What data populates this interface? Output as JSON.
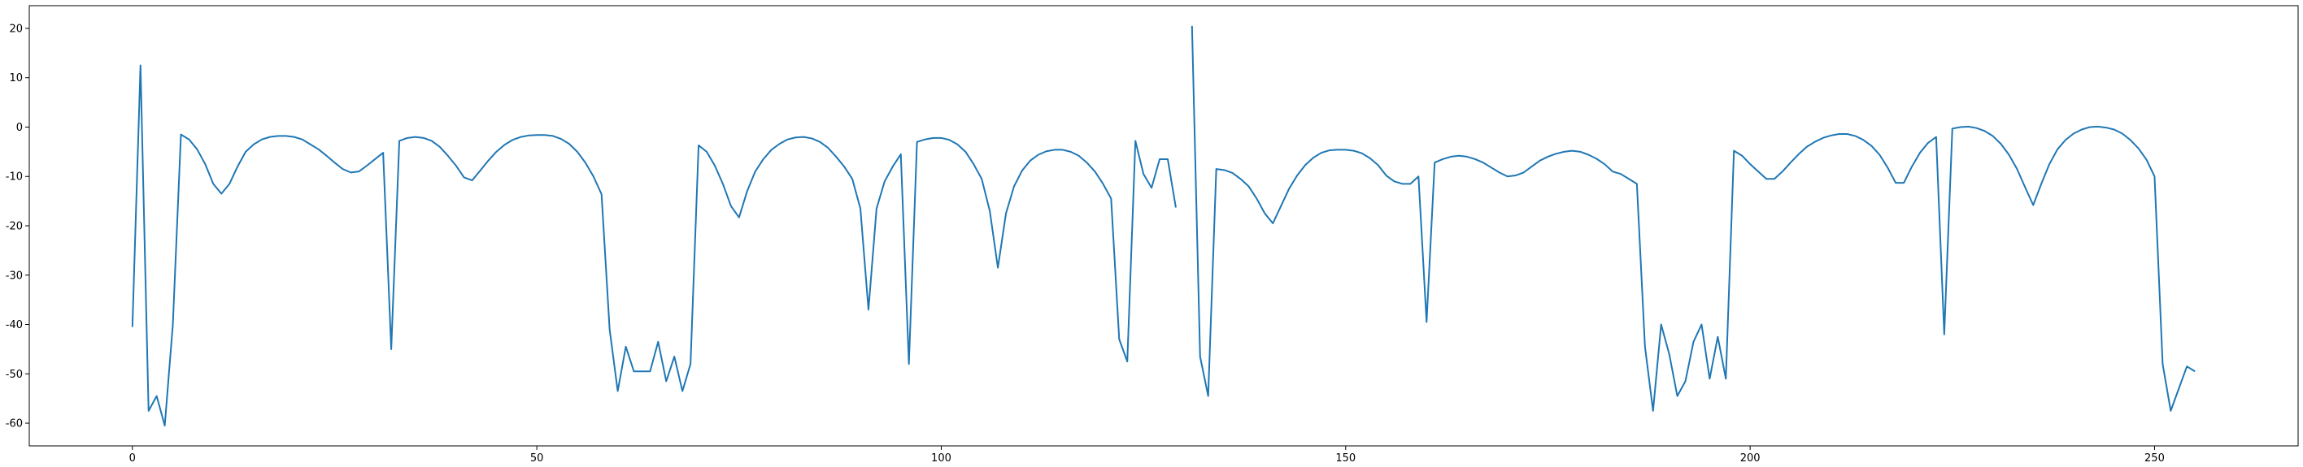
{
  "chart_data": {
    "type": "line",
    "x": [
      0,
      1,
      2,
      3,
      4,
      5,
      6,
      7,
      8,
      9,
      10,
      11,
      12,
      13,
      14,
      15,
      16,
      17,
      18,
      19,
      20,
      21,
      22,
      23,
      24,
      25,
      26,
      27,
      28,
      29,
      30,
      31,
      32,
      33,
      34,
      35,
      36,
      37,
      38,
      39,
      40,
      41,
      42,
      43,
      44,
      45,
      46,
      47,
      48,
      49,
      50,
      51,
      52,
      53,
      54,
      55,
      56,
      57,
      58,
      59,
      60,
      61,
      62,
      63,
      64,
      65,
      66,
      67,
      68,
      69,
      70,
      71,
      72,
      73,
      74,
      75,
      76,
      77,
      78,
      79,
      80,
      81,
      82,
      83,
      84,
      85,
      86,
      87,
      88,
      89,
      90,
      91,
      92,
      93,
      94,
      95,
      96,
      97,
      98,
      99,
      100,
      101,
      102,
      103,
      104,
      105,
      106,
      107,
      108,
      109,
      110,
      111,
      112,
      113,
      114,
      115,
      116,
      117,
      118,
      119,
      120,
      121,
      122,
      123,
      124,
      125,
      126,
      127,
      128,
      129,
      130,
      131,
      132,
      133,
      134,
      135,
      136,
      137,
      138,
      139,
      140,
      141,
      142,
      143,
      144,
      145,
      146,
      147,
      148,
      149,
      150,
      151,
      152,
      153,
      154,
      155,
      156,
      157,
      158,
      159,
      160,
      161,
      162,
      163,
      164,
      165,
      166,
      167,
      168,
      169,
      170,
      171,
      172,
      173,
      174,
      175,
      176,
      177,
      178,
      179,
      180,
      181,
      182,
      183,
      184,
      185,
      186,
      187,
      188,
      189,
      190,
      191,
      192,
      193,
      194,
      195,
      196,
      197,
      198,
      199,
      200,
      201,
      202,
      203,
      204,
      205,
      206,
      207,
      208,
      209,
      210,
      211,
      212,
      213,
      214,
      215,
      216,
      217,
      218,
      219,
      220,
      221,
      222,
      223,
      224,
      225,
      226,
      227,
      228,
      229,
      230,
      231,
      232,
      233,
      234,
      235,
      236,
      237,
      238,
      239,
      240,
      241,
      242,
      243,
      244,
      245,
      246,
      247,
      248,
      249,
      250,
      251,
      252,
      253,
      254,
      255
    ],
    "series": [
      {
        "color": "#1f77b4",
        "values": [
          -40.5,
          12.5,
          -57.5,
          -54.5,
          -60.5,
          -40,
          -1.5,
          -2.5,
          -4.5,
          -7.5,
          -11.5,
          -13.5,
          -11.5,
          -8,
          -5,
          -3.5,
          -2.5,
          -2,
          -1.8,
          -1.8,
          -2,
          -2.5,
          -3.5,
          -4.5,
          -5.8,
          -7.2,
          -8.5,
          -9.2,
          -9,
          -7.8,
          -6.5,
          -5.2,
          -45,
          -2.8,
          -2.2,
          -2,
          -2.2,
          -2.8,
          -4,
          -5.8,
          -7.8,
          -10.2,
          -10.8,
          -8.8,
          -6.8,
          -5,
          -3.6,
          -2.6,
          -2,
          -1.7,
          -1.6,
          -1.6,
          -1.8,
          -2.4,
          -3.4,
          -5,
          -7.2,
          -10,
          -13.6,
          -41,
          -53.5,
          -44.5,
          -49.5,
          -49.5,
          -49.5,
          -43.5,
          -51.5,
          -46.5,
          -53.5,
          -48,
          -3.7,
          -5,
          -7.8,
          -11.5,
          -16,
          -18.3,
          -13,
          -9,
          -6.5,
          -4.6,
          -3.4,
          -2.5,
          -2.1,
          -2,
          -2.3,
          -3,
          -4.2,
          -6,
          -8,
          -10.5,
          -16.5,
          -37,
          -16.5,
          -11,
          -8,
          -5.5,
          -48,
          -3,
          -2.5,
          -2.2,
          -2.2,
          -2.6,
          -3.5,
          -5,
          -7.5,
          -10.5,
          -17,
          -28.5,
          -17.5,
          -12,
          -8.8,
          -6.8,
          -5.6,
          -4.9,
          -4.6,
          -4.6,
          -5,
          -5.8,
          -7.2,
          -9,
          -11.5,
          -14.5,
          -43,
          -47.5,
          -2.8,
          -9.5,
          -12.3,
          -6.5,
          -6.5,
          -16.3,
          null,
          20.5,
          -46.5,
          -54.5,
          -8.5,
          -8.7,
          -9.3,
          -10.5,
          -12,
          -14.5,
          -17.5,
          -19.5,
          -16,
          -12.5,
          -9.8,
          -7.7,
          -6.2,
          -5.2,
          -4.7,
          -4.6,
          -4.6,
          -4.8,
          -5.3,
          -6.3,
          -7.7,
          -9.8,
          -11,
          -11.5,
          -11.5,
          -10,
          -39.5,
          -7.2,
          -6.5,
          -6,
          -5.8,
          -6,
          -6.5,
          -7.2,
          -8.2,
          -9.2,
          -10,
          -9.8,
          -9.2,
          -8,
          -6.8,
          -6,
          -5.4,
          -5,
          -4.8,
          -5,
          -5.6,
          -6.4,
          -7.5,
          -9,
          -9.5,
          -10.5,
          -11.5,
          -44.5,
          -57.5,
          -40,
          -46,
          -54.5,
          -51.5,
          -43.5,
          -40,
          -51,
          -42.5,
          -51,
          -4.8,
          -5.8,
          -7.5,
          -9,
          -10.5,
          -10.5,
          -9,
          -7.2,
          -5.5,
          -4,
          -3,
          -2.2,
          -1.7,
          -1.4,
          -1.4,
          -1.8,
          -2.6,
          -3.8,
          -5.6,
          -8.2,
          -11.3,
          -11.3,
          -8,
          -5.2,
          -3.2,
          -2,
          -42,
          -0.3,
          0,
          0.1,
          -0.2,
          -0.8,
          -1.8,
          -3.4,
          -5.6,
          -8.5,
          -12.2,
          -15.8,
          -11.5,
          -7.5,
          -4.5,
          -2.6,
          -1.3,
          -0.5,
          0,
          0.1,
          -0.1,
          -0.5,
          -1.3,
          -2.6,
          -4.3,
          -6.6,
          -10,
          -48,
          -57.5,
          -53,
          -48.5,
          -49.5
        ]
      }
    ],
    "xlim": [
      -12.75,
      267.75
    ],
    "ylim": [
      -64.6,
      24.6
    ],
    "xticks": [
      0,
      50,
      100,
      150,
      200,
      250
    ],
    "yticks": [
      -60,
      -50,
      -40,
      -30,
      -20,
      -10,
      0,
      10,
      20
    ]
  }
}
